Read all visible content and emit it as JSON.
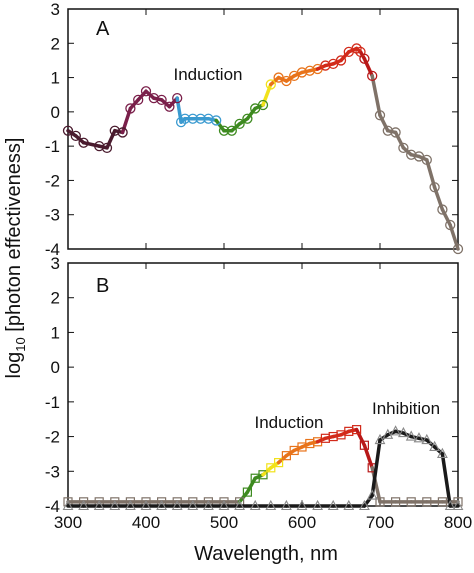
{
  "figure": {
    "ylabel_main": "log",
    "ylabel_sub": "10",
    "ylabel_rest": " [photon effectiveness]",
    "xlabel": "Wavelength, nm",
    "colors": {
      "violet": "#4a1b2e",
      "purple": "#7a1f4a",
      "blue": "#3a9ad0",
      "green": "#3d8a1f",
      "yellow": "#f2e21a",
      "orange": "#e8731a",
      "red": "#d22a1a",
      "darkred": "#b81818",
      "gray": "#7f7268",
      "black": "#1a1a1a"
    }
  },
  "chart_data": [
    {
      "type": "line",
      "panel_label": "A",
      "annotations": [
        {
          "text": "Induction"
        }
      ],
      "xlim": [
        300,
        800
      ],
      "ylim": [
        -4,
        3
      ],
      "xticks": [
        300,
        400,
        500,
        600,
        700,
        800
      ],
      "yticks": [
        -4,
        -3,
        -2,
        -1,
        0,
        1,
        2,
        3
      ],
      "series": [
        {
          "marker": "circle",
          "points": [
            [
              300,
              -0.55,
              "violet"
            ],
            [
              310,
              -0.7,
              "violet"
            ],
            [
              320,
              -0.9,
              "violet"
            ],
            [
              340,
              -1.0,
              "violet"
            ],
            [
              350,
              -1.05,
              "violet"
            ],
            [
              360,
              -0.55,
              "violet"
            ],
            [
              370,
              -0.6,
              "violet"
            ],
            [
              380,
              0.1,
              "purple"
            ],
            [
              390,
              0.35,
              "purple"
            ],
            [
              400,
              0.6,
              "purple"
            ],
            [
              410,
              0.4,
              "purple"
            ],
            [
              420,
              0.35,
              "purple"
            ],
            [
              430,
              0.15,
              "purple"
            ],
            [
              440,
              0.4,
              "purple"
            ],
            [
              445,
              -0.3,
              "blue"
            ],
            [
              450,
              -0.2,
              "blue"
            ],
            [
              460,
              -0.2,
              "blue"
            ],
            [
              470,
              -0.2,
              "blue"
            ],
            [
              480,
              -0.2,
              "blue"
            ],
            [
              490,
              -0.25,
              "blue"
            ],
            [
              500,
              -0.55,
              "green"
            ],
            [
              510,
              -0.55,
              "green"
            ],
            [
              520,
              -0.35,
              "green"
            ],
            [
              530,
              -0.2,
              "green"
            ],
            [
              540,
              0.1,
              "green"
            ],
            [
              550,
              0.2,
              "green"
            ],
            [
              560,
              0.8,
              "yellow"
            ],
            [
              570,
              1.0,
              "orange"
            ],
            [
              580,
              0.9,
              "orange"
            ],
            [
              590,
              1.05,
              "orange"
            ],
            [
              600,
              1.15,
              "orange"
            ],
            [
              610,
              1.2,
              "orange"
            ],
            [
              620,
              1.25,
              "orange"
            ],
            [
              630,
              1.35,
              "red"
            ],
            [
              640,
              1.4,
              "red"
            ],
            [
              650,
              1.5,
              "red"
            ],
            [
              660,
              1.75,
              "red"
            ],
            [
              670,
              1.85,
              "red"
            ],
            [
              675,
              1.75,
              "red"
            ],
            [
              680,
              1.55,
              "darkred"
            ],
            [
              690,
              1.05,
              "darkred"
            ],
            [
              700,
              -0.1,
              "gray"
            ],
            [
              710,
              -0.55,
              "gray"
            ],
            [
              720,
              -0.6,
              "gray"
            ],
            [
              730,
              -1.05,
              "gray"
            ],
            [
              740,
              -1.25,
              "gray"
            ],
            [
              750,
              -1.3,
              "gray"
            ],
            [
              760,
              -1.4,
              "gray"
            ],
            [
              770,
              -2.2,
              "gray"
            ],
            [
              780,
              -2.85,
              "gray"
            ],
            [
              790,
              -3.3,
              "gray"
            ],
            [
              800,
              -4.0,
              "gray"
            ]
          ]
        }
      ]
    },
    {
      "type": "line",
      "panel_label": "B",
      "annotations": [
        {
          "text": "Induction"
        },
        {
          "text": "Inhibition"
        }
      ],
      "xlim": [
        300,
        800
      ],
      "ylim": [
        -4,
        3
      ],
      "xticks": [
        300,
        400,
        500,
        600,
        700,
        800
      ],
      "yticks": [
        -4,
        -3,
        -2,
        -1,
        0,
        1,
        2,
        3
      ],
      "series": [
        {
          "name": "induction",
          "marker": "square",
          "points": [
            [
              300,
              -3.88,
              "gray"
            ],
            [
              320,
              -3.88,
              "gray"
            ],
            [
              340,
              -3.88,
              "gray"
            ],
            [
              360,
              -3.88,
              "gray"
            ],
            [
              380,
              -3.88,
              "gray"
            ],
            [
              400,
              -3.88,
              "gray"
            ],
            [
              420,
              -3.88,
              "gray"
            ],
            [
              440,
              -3.88,
              "gray"
            ],
            [
              460,
              -3.88,
              "gray"
            ],
            [
              480,
              -3.88,
              "gray"
            ],
            [
              500,
              -3.88,
              "gray"
            ],
            [
              520,
              -3.88,
              "gray"
            ],
            [
              530,
              -3.6,
              "green"
            ],
            [
              540,
              -3.2,
              "green"
            ],
            [
              550,
              -3.1,
              "green"
            ],
            [
              560,
              -2.9,
              "yellow"
            ],
            [
              570,
              -2.75,
              "yellow"
            ],
            [
              580,
              -2.55,
              "orange"
            ],
            [
              590,
              -2.4,
              "orange"
            ],
            [
              600,
              -2.3,
              "orange"
            ],
            [
              610,
              -2.2,
              "orange"
            ],
            [
              620,
              -2.15,
              "orange"
            ],
            [
              630,
              -2.05,
              "red"
            ],
            [
              640,
              -2.0,
              "red"
            ],
            [
              650,
              -1.95,
              "red"
            ],
            [
              660,
              -1.85,
              "red"
            ],
            [
              670,
              -1.8,
              "red"
            ],
            [
              680,
              -2.25,
              "darkred"
            ],
            [
              690,
              -2.9,
              "darkred"
            ],
            [
              700,
              -3.88,
              "gray"
            ],
            [
              720,
              -3.88,
              "gray"
            ],
            [
              740,
              -3.88,
              "gray"
            ],
            [
              760,
              -3.88,
              "gray"
            ],
            [
              780,
              -3.88,
              "gray"
            ],
            [
              800,
              -3.88,
              "gray"
            ]
          ]
        },
        {
          "name": "inhibition",
          "marker": "triangle",
          "points": [
            [
              300,
              -4.0,
              "black"
            ],
            [
              320,
              -4.0,
              "black"
            ],
            [
              340,
              -4.0,
              "black"
            ],
            [
              360,
              -4.0,
              "black"
            ],
            [
              380,
              -4.0,
              "black"
            ],
            [
              400,
              -4.0,
              "black"
            ],
            [
              420,
              -4.0,
              "black"
            ],
            [
              440,
              -4.0,
              "black"
            ],
            [
              460,
              -4.0,
              "black"
            ],
            [
              480,
              -4.0,
              "black"
            ],
            [
              500,
              -4.0,
              "black"
            ],
            [
              520,
              -4.0,
              "black"
            ],
            [
              540,
              -4.0,
              "black"
            ],
            [
              560,
              -4.0,
              "black"
            ],
            [
              580,
              -4.0,
              "black"
            ],
            [
              600,
              -4.0,
              "black"
            ],
            [
              620,
              -4.0,
              "black"
            ],
            [
              640,
              -4.0,
              "black"
            ],
            [
              660,
              -4.0,
              "black"
            ],
            [
              680,
              -4.0,
              "black"
            ],
            [
              690,
              -3.7,
              "black"
            ],
            [
              700,
              -2.1,
              "black"
            ],
            [
              710,
              -1.95,
              "black"
            ],
            [
              720,
              -1.85,
              "black"
            ],
            [
              730,
              -1.9,
              "black"
            ],
            [
              740,
              -2.0,
              "black"
            ],
            [
              750,
              -2.05,
              "black"
            ],
            [
              760,
              -2.1,
              "black"
            ],
            [
              770,
              -2.3,
              "black"
            ],
            [
              780,
              -2.5,
              "black"
            ],
            [
              790,
              -4.0,
              "black"
            ],
            [
              800,
              -4.0,
              "black"
            ]
          ]
        }
      ]
    }
  ]
}
